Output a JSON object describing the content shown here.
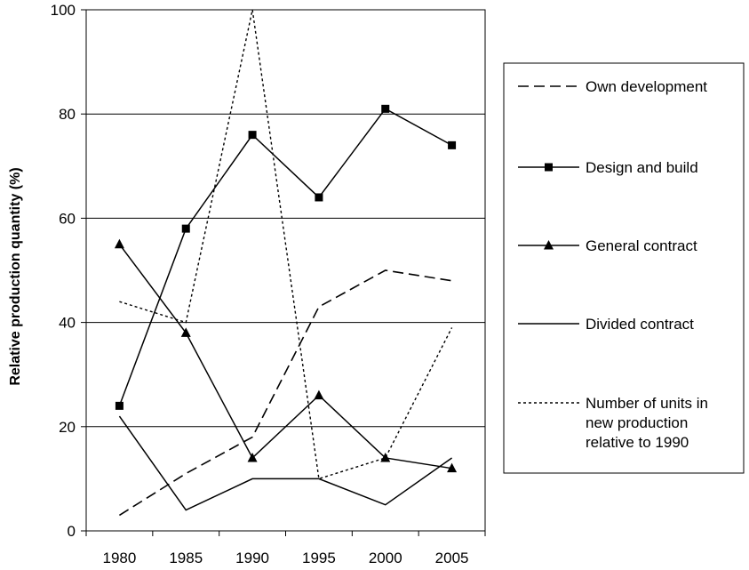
{
  "chart_data": {
    "type": "line",
    "title": "",
    "xlabel": "",
    "ylabel": "Relative production quantity (%)",
    "categories": [
      "1980",
      "1985",
      "1990",
      "1995",
      "2000",
      "2005"
    ],
    "ylim": [
      0,
      100
    ],
    "yticks": [
      0,
      20,
      40,
      60,
      80,
      100
    ],
    "grid": "horizontal",
    "legend_position": "right",
    "series": [
      {
        "name": "Own development",
        "style": "dashed",
        "marker": "none",
        "values": [
          3,
          11,
          18,
          43,
          50,
          48
        ]
      },
      {
        "name": "Design and build",
        "style": "solid",
        "marker": "square",
        "values": [
          24,
          58,
          76,
          64,
          81,
          74
        ]
      },
      {
        "name": "General contract",
        "style": "solid",
        "marker": "triangle",
        "values": [
          55,
          38,
          14,
          26,
          14,
          12
        ]
      },
      {
        "name": "Divided contract",
        "style": "solid",
        "marker": "none",
        "values": [
          22,
          4,
          10,
          10,
          5,
          14
        ]
      },
      {
        "name_lines": [
          "Number of units in",
          "new production",
          "relative to 1990"
        ],
        "style": "dotted",
        "marker": "none",
        "values": [
          44,
          40,
          100,
          10,
          14,
          39
        ]
      }
    ],
    "colors": {
      "lines": "#000000",
      "grid": "#000000",
      "background": "#ffffff"
    }
  }
}
